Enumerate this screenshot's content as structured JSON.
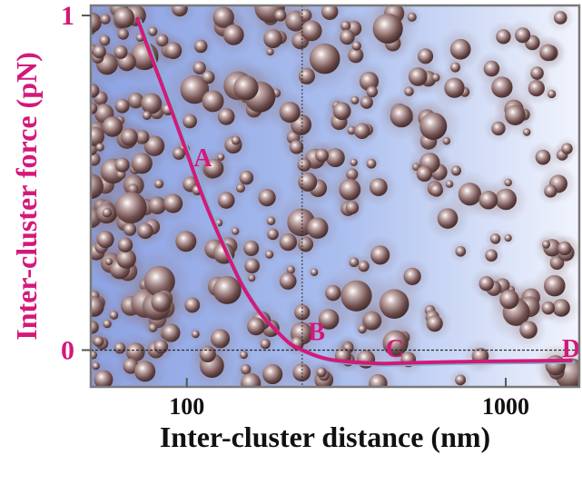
{
  "chart_data": {
    "type": "line",
    "xlabel": "Inter-cluster distance (nm)",
    "ylabel": "Inter-cluster force (pN)",
    "x_scale": "log",
    "x_ticks": [
      {
        "value": 100,
        "label": "100"
      },
      {
        "value": 1000,
        "label": "1000"
      }
    ],
    "y_ticks": [
      {
        "value": 0,
        "label": "0"
      },
      {
        "value": 1,
        "label": "1"
      }
    ],
    "xlim": [
      50,
      1700
    ],
    "ylim": [
      -0.11,
      1.03
    ],
    "grid": false,
    "reference_lines": {
      "x": 230,
      "y": 0
    },
    "series": [
      {
        "x": [
          70,
          80,
          90,
          100,
          110,
          120,
          135,
          150,
          170,
          190,
          210,
          230,
          260,
          300,
          400,
          500,
          700,
          1000,
          1300,
          1600
        ],
        "y": [
          0.99,
          0.84,
          0.71,
          0.59,
          0.48,
          0.39,
          0.28,
          0.19,
          0.11,
          0.06,
          0.02,
          0.0,
          -0.02,
          -0.032,
          -0.04,
          -0.038,
          -0.035,
          -0.033,
          -0.032,
          -0.031
        ]
      }
    ],
    "annotations": [
      {
        "label": "A",
        "x": 105,
        "y": 0.55
      },
      {
        "label": "B",
        "x": 240,
        "y": 0.03
      },
      {
        "label": "C",
        "x": 420,
        "y": -0.02
      },
      {
        "label": "D",
        "x": 1500,
        "y": -0.02
      }
    ],
    "colors": {
      "curve": "#d4187a",
      "curve_highlight": "#7ab8c8",
      "axis_text": "#d4187a",
      "label_text": "#111111",
      "background_left": "#8fa6e6",
      "background_right": "#eef2fc",
      "clusters": "#7a5a5a"
    }
  }
}
